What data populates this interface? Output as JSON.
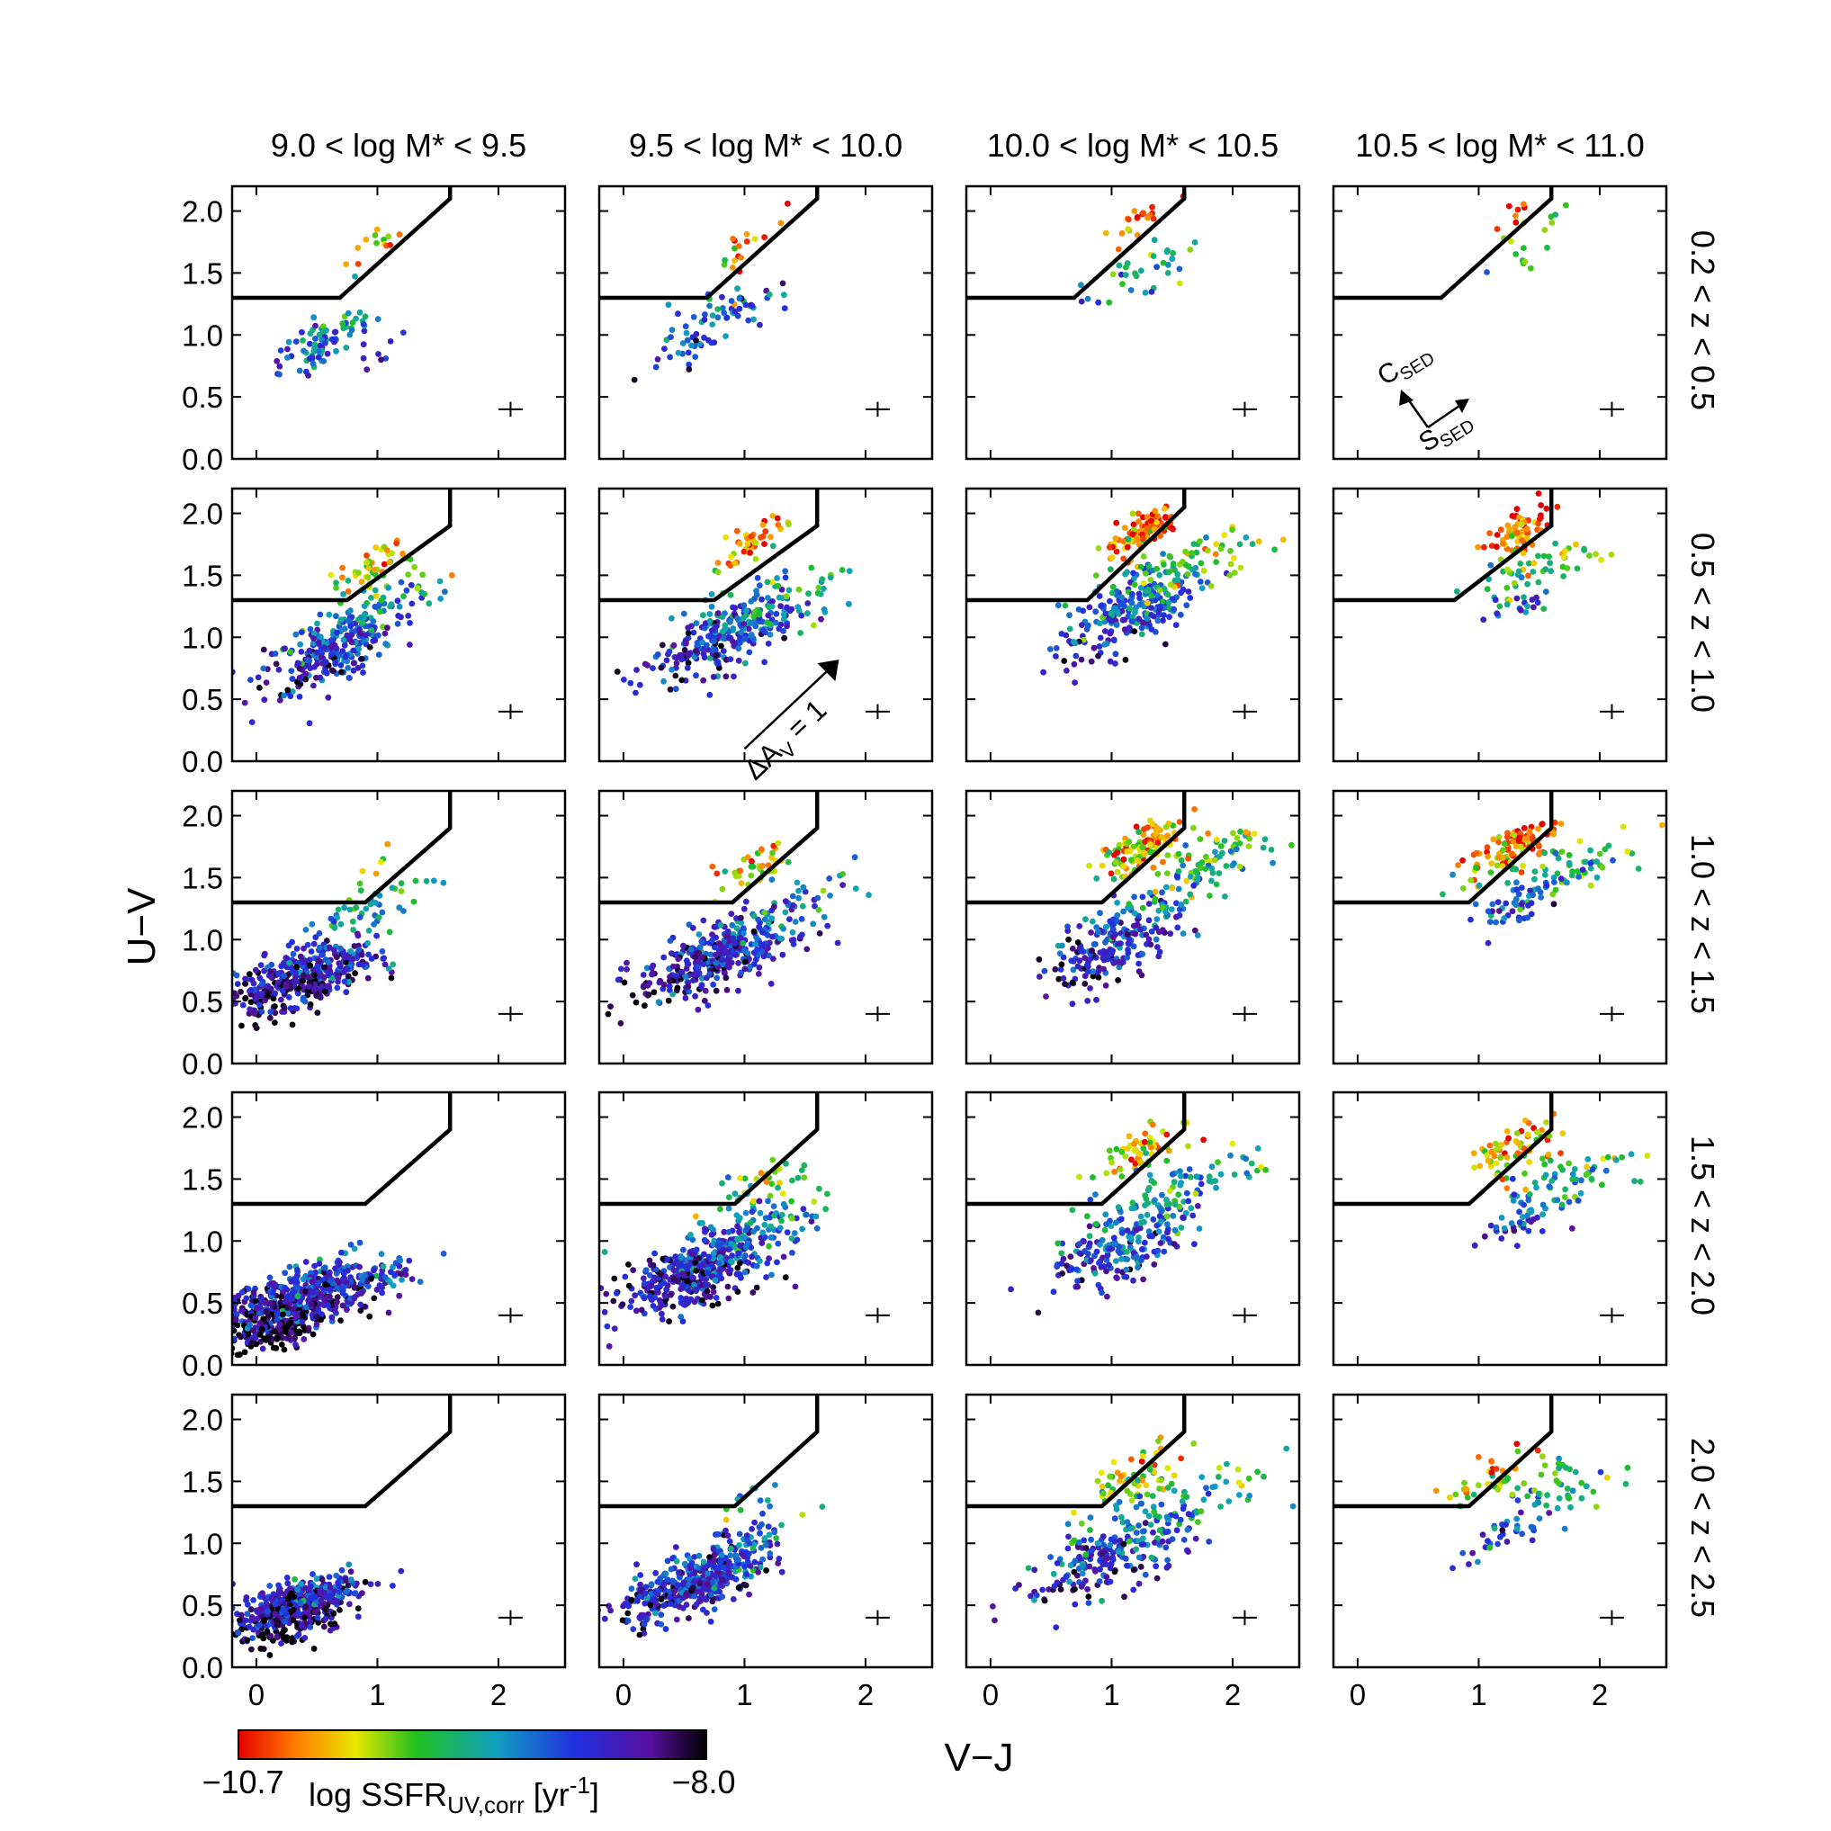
{
  "chart_data": {
    "type": "scatter",
    "title": "",
    "xlabel": "V−J",
    "ylabel": "U−V",
    "xlim": [
      -0.2,
      2.55
    ],
    "ylim": [
      0.0,
      2.2
    ],
    "x_ticks": [
      "0",
      "1",
      "2"
    ],
    "y_ticks": [
      "0.0",
      "0.5",
      "1.0",
      "1.5",
      "2.0"
    ],
    "columns": [
      "9.0 < log M* < 9.5",
      "9.5 < log M* < 10.0",
      "10.0 < log M* < 10.5",
      "10.5 < log M* < 11.0"
    ],
    "rows": [
      "0.2 < z < 0.5",
      "0.5 < z < 1.0",
      "1.0 < z < 1.5",
      "1.5 < z < 2.0",
      "2.0 < z < 2.5"
    ],
    "uvj_boundary": [
      [
        -0.2,
        1.3
      ],
      [
        0.69,
        1.3
      ],
      [
        1.6,
        2.1
      ],
      [
        1.6,
        2.2
      ]
    ],
    "uvj_boundary_by_panel": [
      [
        [
          [
            -0.2,
            1.3
          ],
          [
            0.69,
            1.3
          ],
          [
            1.6,
            2.1
          ],
          [
            1.6,
            2.2
          ]
        ],
        [
          [
            -0.2,
            1.3
          ],
          [
            0.69,
            1.3
          ],
          [
            1.6,
            2.1
          ],
          [
            1.6,
            2.2
          ]
        ],
        [
          [
            -0.2,
            1.3
          ],
          [
            0.69,
            1.3
          ],
          [
            1.6,
            2.1
          ],
          [
            1.6,
            2.2
          ]
        ],
        [
          [
            -0.2,
            1.3
          ],
          [
            0.69,
            1.3
          ],
          [
            1.6,
            2.1
          ],
          [
            1.6,
            2.2
          ]
        ]
      ],
      [
        [
          [
            -0.2,
            1.3
          ],
          [
            0.75,
            1.3
          ],
          [
            1.6,
            1.9
          ],
          [
            1.6,
            2.2
          ]
        ],
        [
          [
            -0.2,
            1.3
          ],
          [
            0.75,
            1.3
          ],
          [
            1.6,
            1.9
          ],
          [
            1.6,
            2.2
          ]
        ],
        [
          [
            -0.2,
            1.3
          ],
          [
            0.8,
            1.3
          ],
          [
            1.6,
            2.05
          ],
          [
            1.6,
            2.2
          ]
        ],
        [
          [
            -0.2,
            1.3
          ],
          [
            0.8,
            1.3
          ],
          [
            1.6,
            1.9
          ],
          [
            1.6,
            2.2
          ]
        ]
      ],
      [
        [
          [
            -0.2,
            1.3
          ],
          [
            0.9,
            1.3
          ],
          [
            1.6,
            1.9
          ],
          [
            1.6,
            2.2
          ]
        ],
        [
          [
            -0.2,
            1.3
          ],
          [
            0.9,
            1.3
          ],
          [
            1.6,
            1.9
          ],
          [
            1.6,
            2.2
          ]
        ],
        [
          [
            -0.2,
            1.3
          ],
          [
            0.92,
            1.3
          ],
          [
            1.6,
            1.9
          ],
          [
            1.6,
            2.2
          ]
        ],
        [
          [
            -0.2,
            1.3
          ],
          [
            0.92,
            1.3
          ],
          [
            1.6,
            1.9
          ],
          [
            1.6,
            2.2
          ]
        ]
      ],
      [
        [
          [
            -0.2,
            1.3
          ],
          [
            0.9,
            1.3
          ],
          [
            1.6,
            1.9
          ],
          [
            1.6,
            2.2
          ]
        ],
        [
          [
            -0.2,
            1.3
          ],
          [
            0.92,
            1.3
          ],
          [
            1.6,
            1.9
          ],
          [
            1.6,
            2.2
          ]
        ],
        [
          [
            -0.2,
            1.3
          ],
          [
            0.92,
            1.3
          ],
          [
            1.6,
            1.9
          ],
          [
            1.6,
            2.2
          ]
        ],
        [
          [
            -0.2,
            1.3
          ],
          [
            0.92,
            1.3
          ],
          [
            1.6,
            1.9
          ],
          [
            1.6,
            2.2
          ]
        ]
      ],
      [
        [
          [
            -0.2,
            1.3
          ],
          [
            0.9,
            1.3
          ],
          [
            1.6,
            1.9
          ],
          [
            1.6,
            2.2
          ]
        ],
        [
          [
            -0.2,
            1.3
          ],
          [
            0.92,
            1.3
          ],
          [
            1.6,
            1.9
          ],
          [
            1.6,
            2.2
          ]
        ],
        [
          [
            -0.2,
            1.3
          ],
          [
            0.92,
            1.3
          ],
          [
            1.6,
            1.9
          ],
          [
            1.6,
            2.2
          ]
        ],
        [
          [
            -0.2,
            1.3
          ],
          [
            0.92,
            1.3
          ],
          [
            1.6,
            1.9
          ],
          [
            1.6,
            2.2
          ]
        ]
      ]
    ],
    "error_cross": {
      "x": 2.1,
      "y": 0.4,
      "dx": 0.1,
      "dy": 0.06
    },
    "colorbar": {
      "label_main": "log SSFR",
      "label_sub": "UV,corr",
      "label_unit_open": " [yr",
      "label_unit_exp": "-1",
      "label_unit_close": "]",
      "min_label": "−10.7",
      "max_label": "−8.0",
      "min": -10.7,
      "max": -8.0
    },
    "annotations": {
      "dust_vector": {
        "label_main": "ΔA",
        "label_sub": "V",
        "label_rest": " = 1",
        "panel": [
          1,
          1
        ],
        "from": [
          1.0,
          0.1
        ],
        "to": [
          1.78,
          0.82
        ]
      },
      "sed_axes": {
        "c_main": "C",
        "c_sub": "SED",
        "s_main": "S",
        "s_sub": "SED",
        "panel": [
          0,
          3
        ]
      }
    },
    "samples": {
      "description": "Each panel holds a scatter of galaxies (V-J, U-V), coloured by log SSFR. Points per panel generated from these cluster summaries (center x, center y, spread x, spread y, count, ssfr center).",
      "panels": [
        [
          {
            "clusters": [
              [
                0.6,
                1.0,
                0.2,
                0.12,
                55,
                -9.1
              ],
              [
                0.95,
                1.7,
                0.12,
                0.18,
                14,
                -10.2
              ],
              [
                0.4,
                0.8,
                0.15,
                0.1,
                25,
                -8.9
              ],
              [
                1.05,
                0.9,
                0.15,
                0.15,
                8,
                -8.6
              ]
            ]
          },
          {
            "clusters": [
              [
                0.9,
                1.2,
                0.25,
                0.15,
                50,
                -9.0
              ],
              [
                1.05,
                1.75,
                0.15,
                0.15,
                18,
                -10.3
              ],
              [
                0.6,
                0.9,
                0.15,
                0.1,
                25,
                -8.8
              ]
            ]
          },
          {
            "clusters": [
              [
                1.2,
                1.5,
                0.25,
                0.18,
                35,
                -9.4
              ],
              [
                1.2,
                1.95,
                0.12,
                0.12,
                20,
                -10.4
              ]
            ]
          },
          {
            "clusters": [
              [
                1.4,
                1.7,
                0.2,
                0.2,
                15,
                -9.8
              ],
              [
                1.3,
                1.95,
                0.1,
                0.1,
                8,
                -10.5
              ]
            ]
          }
        ],
        [
          {
            "clusters": [
              [
                0.6,
                0.9,
                0.28,
                0.22,
                260,
                -8.8
              ],
              [
                0.95,
                1.55,
                0.15,
                0.15,
                50,
                -10.0
              ],
              [
                1.1,
                1.3,
                0.25,
                0.15,
                40,
                -9.3
              ]
            ]
          },
          {
            "clusters": [
              [
                0.85,
                1.0,
                0.3,
                0.22,
                260,
                -8.8
              ],
              [
                1.05,
                1.75,
                0.12,
                0.12,
                45,
                -10.3
              ],
              [
                1.3,
                1.3,
                0.3,
                0.2,
                60,
                -9.3
              ]
            ]
          },
          {
            "clusters": [
              [
                1.15,
                1.2,
                0.28,
                0.25,
                220,
                -8.9
              ],
              [
                1.25,
                1.85,
                0.15,
                0.12,
                110,
                -10.4
              ],
              [
                1.6,
                1.55,
                0.3,
                0.18,
                80,
                -9.6
              ]
            ]
          },
          {
            "clusters": [
              [
                1.35,
                1.85,
                0.12,
                0.12,
                70,
                -10.5
              ],
              [
                1.5,
                1.55,
                0.3,
                0.15,
                50,
                -9.7
              ],
              [
                1.3,
                1.25,
                0.15,
                0.1,
                20,
                -8.9
              ]
            ]
          }
        ],
        [
          {
            "clusters": [
              [
                0.4,
                0.7,
                0.3,
                0.2,
                380,
                -8.5
              ],
              [
                0.9,
                1.2,
                0.25,
                0.2,
                50,
                -9.3
              ],
              [
                0.95,
                1.55,
                0.1,
                0.12,
                6,
                -10.0
              ]
            ]
          },
          {
            "clusters": [
              [
                0.75,
                0.85,
                0.32,
                0.22,
                330,
                -8.6
              ],
              [
                1.05,
                1.55,
                0.15,
                0.12,
                40,
                -10.0
              ],
              [
                1.3,
                1.2,
                0.3,
                0.2,
                60,
                -9.0
              ]
            ]
          },
          {
            "clusters": [
              [
                1.05,
                1.0,
                0.28,
                0.25,
                220,
                -8.7
              ],
              [
                1.25,
                1.75,
                0.18,
                0.15,
                110,
                -10.2
              ],
              [
                1.7,
                1.55,
                0.3,
                0.2,
                90,
                -9.5
              ]
            ]
          },
          {
            "clusters": [
              [
                1.3,
                1.75,
                0.18,
                0.15,
                110,
                -10.3
              ],
              [
                1.8,
                1.6,
                0.3,
                0.18,
                60,
                -9.5
              ],
              [
                1.35,
                1.3,
                0.18,
                0.15,
                50,
                -8.9
              ]
            ]
          }
        ],
        [
          {
            "clusters": [
              [
                0.3,
                0.5,
                0.35,
                0.2,
                560,
                -8.5
              ],
              [
                0.2,
                0.25,
                0.2,
                0.1,
                60,
                -8.1
              ],
              [
                0.9,
                0.7,
                0.3,
                0.2,
                40,
                -8.7
              ]
            ]
          },
          {
            "clusters": [
              [
                0.6,
                0.75,
                0.32,
                0.22,
                420,
                -8.6
              ],
              [
                1.05,
                1.4,
                0.2,
                0.15,
                40,
                -9.6
              ],
              [
                1.15,
                1.1,
                0.3,
                0.2,
                80,
                -9.0
              ]
            ]
          },
          {
            "clusters": [
              [
                1.05,
                0.95,
                0.3,
                0.25,
                200,
                -8.8
              ],
              [
                1.2,
                1.7,
                0.2,
                0.15,
                60,
                -10.1
              ],
              [
                1.6,
                1.4,
                0.3,
                0.2,
                70,
                -9.3
              ]
            ]
          },
          {
            "clusters": [
              [
                1.3,
                1.75,
                0.2,
                0.15,
                70,
                -10.1
              ],
              [
                1.75,
                1.5,
                0.3,
                0.2,
                60,
                -9.4
              ],
              [
                1.4,
                1.2,
                0.2,
                0.15,
                40,
                -8.9
              ]
            ]
          }
        ],
        [
          {
            "clusters": [
              [
                0.3,
                0.5,
                0.25,
                0.15,
                420,
                -8.5
              ],
              [
                0.35,
                0.3,
                0.2,
                0.1,
                60,
                -8.2
              ]
            ]
          },
          {
            "clusters": [
              [
                0.55,
                0.65,
                0.28,
                0.18,
                360,
                -8.6
              ],
              [
                0.95,
                0.95,
                0.25,
                0.18,
                80,
                -8.9
              ],
              [
                1.0,
                1.35,
                0.15,
                0.1,
                10,
                -9.5
              ]
            ]
          },
          {
            "clusters": [
              [
                1.0,
                0.9,
                0.35,
                0.25,
                220,
                -8.8
              ],
              [
                1.2,
                1.55,
                0.2,
                0.18,
                60,
                -9.9
              ],
              [
                1.7,
                1.35,
                0.3,
                0.2,
                50,
                -9.3
              ]
            ]
          },
          {
            "clusters": [
              [
                1.15,
                1.55,
                0.2,
                0.15,
                40,
                -10.0
              ],
              [
                1.65,
                1.45,
                0.3,
                0.2,
                50,
                -9.4
              ],
              [
                1.25,
                1.05,
                0.2,
                0.15,
                30,
                -8.9
              ]
            ]
          }
        ]
      ]
    }
  }
}
